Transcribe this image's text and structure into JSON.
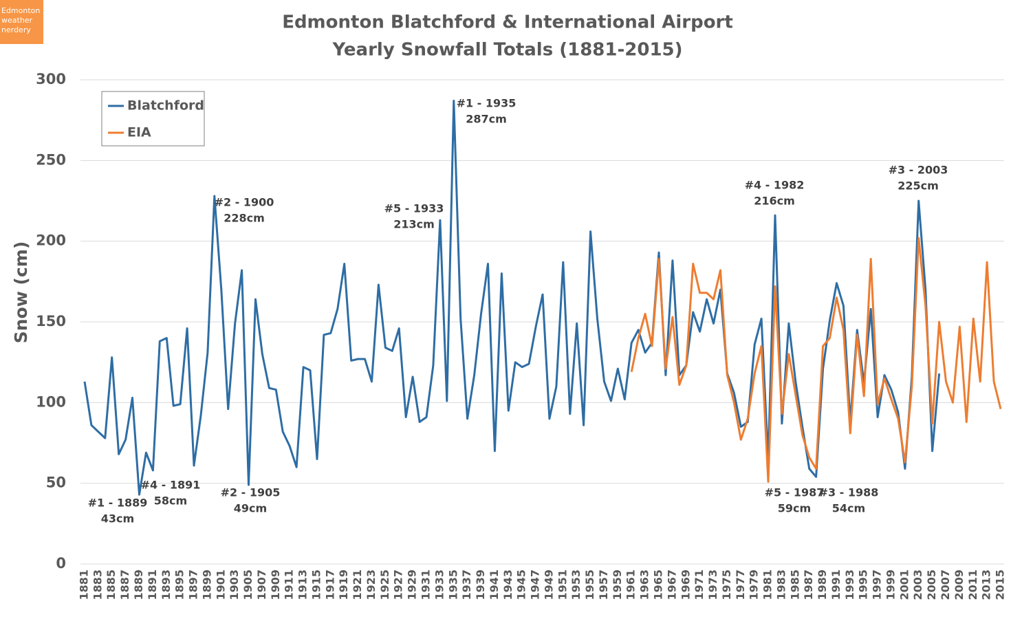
{
  "badge": [
    "Edmonton",
    "weather",
    "nerdery"
  ],
  "chart_data": {
    "type": "line",
    "title": "Edmonton Blatchford & International Airport",
    "subtitle": "Yearly Snowfall Totals (1881-2015)",
    "y_label": "Snow (cm)",
    "grid": true,
    "legend": "upper left",
    "xlim": [
      1880.4,
      2015.5
    ],
    "ylim": [
      0,
      300
    ],
    "yticks": [
      0,
      50,
      100,
      150,
      200,
      250,
      300
    ],
    "xticks": [
      1881,
      1883,
      1885,
      1887,
      1889,
      1891,
      1893,
      1895,
      1897,
      1899,
      1901,
      1903,
      1905,
      1907,
      1909,
      1911,
      1913,
      1915,
      1917,
      1919,
      1921,
      1923,
      1925,
      1927,
      1929,
      1931,
      1933,
      1935,
      1937,
      1939,
      1941,
      1943,
      1945,
      1947,
      1949,
      1951,
      1953,
      1955,
      1957,
      1959,
      1961,
      1963,
      1965,
      1967,
      1969,
      1971,
      1973,
      1975,
      1977,
      1979,
      1981,
      1983,
      1985,
      1987,
      1989,
      1991,
      1993,
      1995,
      1997,
      1999,
      2001,
      2003,
      2005,
      2007,
      2009,
      2011,
      2013,
      2015
    ],
    "x": [
      1881,
      1882,
      1883,
      1884,
      1885,
      1886,
      1887,
      1888,
      1889,
      1890,
      1891,
      1892,
      1893,
      1894,
      1895,
      1896,
      1897,
      1898,
      1899,
      1900,
      1901,
      1902,
      1903,
      1904,
      1905,
      1906,
      1907,
      1908,
      1909,
      1910,
      1911,
      1912,
      1913,
      1914,
      1915,
      1916,
      1917,
      1918,
      1919,
      1920,
      1921,
      1922,
      1923,
      1924,
      1925,
      1926,
      1927,
      1928,
      1929,
      1930,
      1931,
      1932,
      1933,
      1934,
      1935,
      1936,
      1937,
      1938,
      1939,
      1940,
      1941,
      1942,
      1943,
      1944,
      1945,
      1946,
      1947,
      1948,
      1949,
      1950,
      1951,
      1952,
      1953,
      1954,
      1955,
      1956,
      1957,
      1958,
      1959,
      1960,
      1961,
      1962,
      1963,
      1964,
      1965,
      1966,
      1967,
      1968,
      1969,
      1970,
      1971,
      1972,
      1973,
      1974,
      1975,
      1976,
      1977,
      1978,
      1979,
      1980,
      1981,
      1982,
      1983,
      1984,
      1985,
      1986,
      1987,
      1988,
      1989,
      1990,
      1991,
      1992,
      1993,
      1994,
      1995,
      1996,
      1997,
      1998,
      1999,
      2000,
      2001,
      2002,
      2003,
      2004,
      2005,
      2006,
      2007,
      2008,
      2009,
      2010,
      2011,
      2012,
      2013,
      2014,
      2015
    ],
    "series": [
      {
        "name": "Blatchford",
        "color": "#2e6da4",
        "values": [
          113,
          86,
          82,
          78,
          128,
          68,
          77,
          103,
          43,
          69,
          58,
          138,
          140,
          98,
          99,
          146,
          61,
          92,
          131,
          228,
          170,
          96,
          149,
          182,
          49,
          164,
          130,
          109,
          108,
          82,
          73,
          60,
          122,
          120,
          65,
          142,
          143,
          158,
          186,
          126,
          127,
          127,
          113,
          173,
          134,
          132,
          146,
          91,
          116,
          88,
          91,
          123,
          213,
          101,
          287,
          152,
          90,
          117,
          155,
          186,
          70,
          180,
          95,
          125,
          122,
          124,
          147,
          167,
          90,
          110,
          187,
          93,
          149,
          86,
          206,
          152,
          113,
          101,
          121,
          102,
          137,
          145,
          131,
          137,
          193,
          117,
          188,
          117,
          123,
          156,
          144,
          164,
          149,
          170,
          118,
          106,
          85,
          88,
          136,
          152,
          64,
          216,
          87,
          149,
          113,
          85,
          59,
          54,
          121,
          151,
          174,
          160,
          88,
          145,
          112,
          158,
          91,
          117,
          108,
          94,
          59,
          116,
          225,
          170,
          70,
          118,
          null,
          null,
          null,
          null,
          null,
          null,
          null,
          null,
          null
        ]
      },
      {
        "name": "EIA",
        "color": "#ed7d31",
        "values": [
          null,
          null,
          null,
          null,
          null,
          null,
          null,
          null,
          null,
          null,
          null,
          null,
          null,
          null,
          null,
          null,
          null,
          null,
          null,
          null,
          null,
          null,
          null,
          null,
          null,
          null,
          null,
          null,
          null,
          null,
          null,
          null,
          null,
          null,
          null,
          null,
          null,
          null,
          null,
          null,
          null,
          null,
          null,
          null,
          null,
          null,
          null,
          null,
          null,
          null,
          null,
          null,
          null,
          null,
          null,
          null,
          null,
          null,
          null,
          null,
          null,
          null,
          null,
          null,
          null,
          null,
          null,
          null,
          null,
          null,
          null,
          null,
          null,
          null,
          null,
          null,
          null,
          null,
          null,
          null,
          119,
          140,
          155,
          135,
          189,
          121,
          153,
          111,
          123,
          186,
          168,
          168,
          164,
          182,
          117,
          100,
          77,
          90,
          118,
          135,
          51,
          172,
          93,
          130,
          105,
          80,
          66,
          59,
          135,
          140,
          165,
          145,
          81,
          142,
          104,
          189,
          99,
          115,
          102,
          90,
          63,
          110,
          202,
          160,
          87,
          150,
          113,
          100,
          147,
          88,
          152,
          113,
          187,
          113,
          96
        ]
      }
    ],
    "annotations": [
      {
        "x": 1889,
        "lines": [
          "#1 - 1889",
          "43cm"
        ]
      },
      {
        "x": 1891,
        "lines": [
          "#4 - 1891",
          "58cm"
        ]
      },
      {
        "x": 1900,
        "lines": [
          "#2 - 1900",
          "228cm"
        ]
      },
      {
        "x": 1905,
        "lines": [
          "#2 - 1905",
          "49cm"
        ]
      },
      {
        "x": 1933,
        "lines": [
          "#5 - 1933",
          "213cm"
        ]
      },
      {
        "x": 1935,
        "lines": [
          "#1 - 1935",
          "287cm"
        ]
      },
      {
        "x": 1982,
        "lines": [
          "#4 - 1982",
          "216cm"
        ]
      },
      {
        "x": 1987,
        "lines": [
          "#5 - 1987",
          "59cm"
        ]
      },
      {
        "x": 1988,
        "lines": [
          "#3 - 1988",
          "54cm"
        ]
      },
      {
        "x": 2003,
        "lines": [
          "#3 - 2003",
          "225cm"
        ]
      }
    ]
  }
}
